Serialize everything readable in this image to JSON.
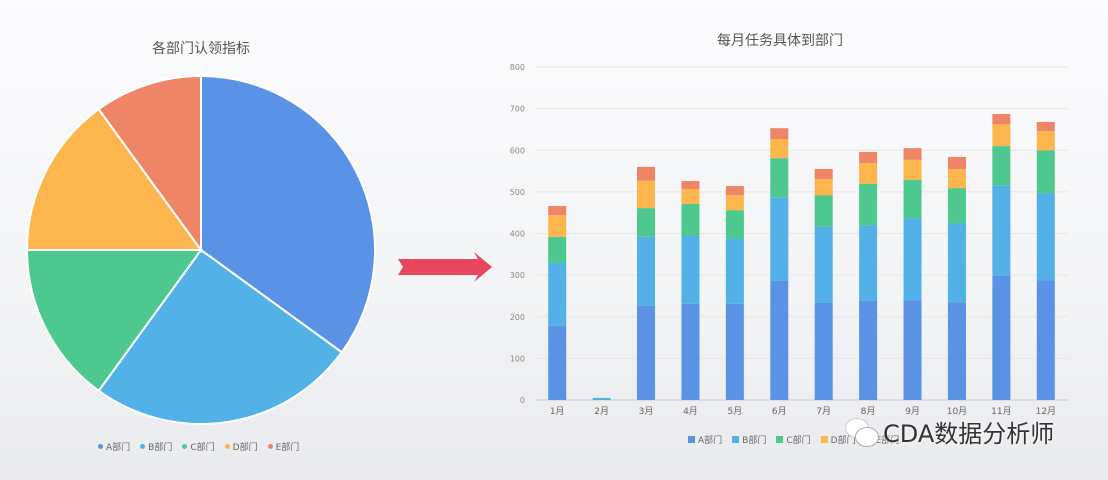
{
  "pie": {
    "title": "各部门认领指标",
    "legend": [
      "A部门",
      "B部门",
      "C部门",
      "D部门",
      "E部门"
    ]
  },
  "bar": {
    "title": "每月任务具体到部门",
    "legend": [
      "A部门",
      "B部门",
      "C部门",
      "D部门",
      "E部门"
    ]
  },
  "watermark": {
    "text": "CDA数据分析师"
  },
  "colors": {
    "A": "#5a93e6",
    "B": "#52b1e6",
    "C": "#4dc98f",
    "D": "#fdb64d",
    "E": "#ee8567",
    "arrow": "#e8465e"
  },
  "chart_data": [
    {
      "type": "pie",
      "title": "各部门认领指标",
      "categories": [
        "A部门",
        "B部门",
        "C部门",
        "D部门",
        "E部门"
      ],
      "values": [
        35,
        25,
        15,
        15,
        10
      ],
      "legend_position": "bottom"
    },
    {
      "type": "bar",
      "stacked": true,
      "title": "每月任务具体到部门",
      "categories": [
        "1月",
        "2月",
        "3月",
        "4月",
        "5月",
        "6月",
        "7月",
        "8月",
        "9月",
        "10月",
        "11月",
        "12月"
      ],
      "series": [
        {
          "name": "A部门",
          "values": [
            178,
            0,
            226,
            231,
            231,
            286,
            233,
            238,
            240,
            235,
            298,
            288
          ]
        },
        {
          "name": "B部门",
          "values": [
            151,
            5,
            166,
            163,
            156,
            200,
            183,
            182,
            197,
            190,
            218,
            209
          ]
        },
        {
          "name": "C部门",
          "values": [
            63,
            0,
            69,
            77,
            69,
            95,
            76,
            99,
            92,
            84,
            94,
            103
          ]
        },
        {
          "name": "D部门",
          "values": [
            52,
            0,
            66,
            36,
            36,
            46,
            39,
            50,
            48,
            46,
            53,
            46
          ]
        },
        {
          "name": "E部门",
          "values": [
            22,
            0,
            33,
            19,
            22,
            26,
            24,
            27,
            28,
            29,
            24,
            22
          ]
        }
      ],
      "yticks": [
        0,
        100,
        200,
        300,
        400,
        500,
        600,
        700,
        800
      ],
      "ylim": [
        0,
        800
      ],
      "xlabel": "",
      "ylabel": "",
      "grid": true,
      "legend_position": "bottom"
    }
  ]
}
